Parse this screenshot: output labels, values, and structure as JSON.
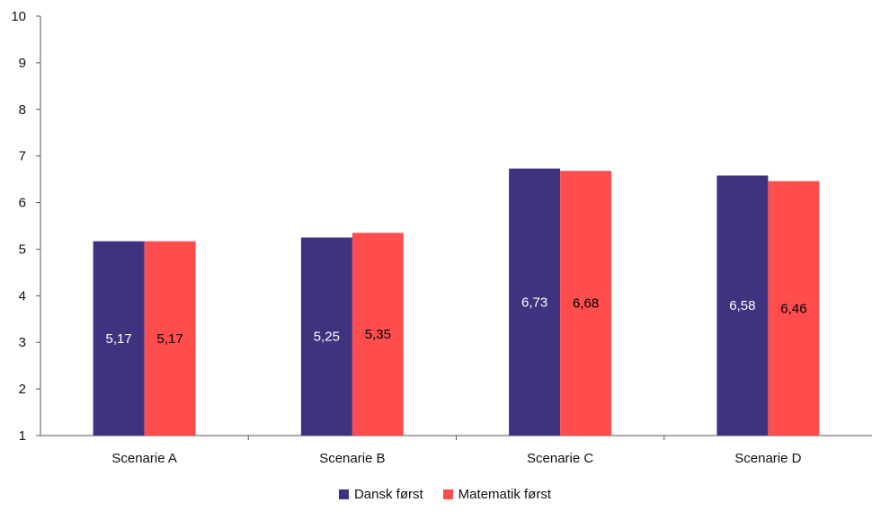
{
  "colors": {
    "series_1": "#3f3380",
    "series_2": "#ff4d4d",
    "axis": "#555555",
    "label_on_series_1": "#ffffff",
    "label_on_series_2": "#000000"
  },
  "chart_data": {
    "type": "bar",
    "categories": [
      "Scenarie A",
      "Scenarie B",
      "Scenarie C",
      "Scenarie D"
    ],
    "series": [
      {
        "name": "Dansk først",
        "values": [
          5.17,
          5.25,
          6.73,
          6.58
        ],
        "labels": [
          "5,17",
          "5,25",
          "6,73",
          "6,58"
        ]
      },
      {
        "name": "Matematik først",
        "values": [
          5.17,
          5.35,
          6.68,
          6.46
        ],
        "labels": [
          "5,17",
          "5,35",
          "6,68",
          "6,46"
        ]
      }
    ],
    "title": "",
    "xlabel": "",
    "ylabel": "",
    "ylim": [
      1,
      10
    ],
    "yticks": [
      "1",
      "2",
      "3",
      "4",
      "5",
      "6",
      "7",
      "8",
      "9",
      "10"
    ],
    "grid": false,
    "legend_position": "bottom"
  }
}
